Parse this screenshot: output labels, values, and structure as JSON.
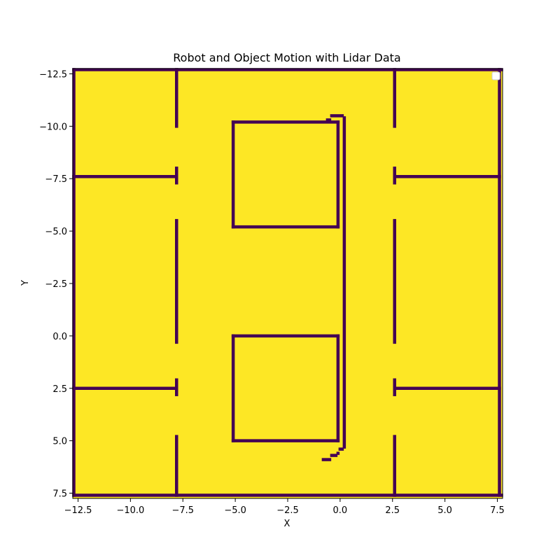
{
  "chart_data": {
    "type": "heatmap",
    "title": "Robot and Object Motion with Lidar Data",
    "xlabel": "X",
    "ylabel": "Y",
    "xlim": [
      -12.75,
      7.75
    ],
    "ylim": [
      7.75,
      -12.75
    ],
    "y_inverted": true,
    "x_ticks": [
      -12.5,
      -10.0,
      -7.5,
      -5.0,
      -2.5,
      0.0,
      2.5,
      5.0,
      7.5
    ],
    "x_tick_labels": [
      "−12.5",
      "−10.0",
      "−7.5",
      "−5.0",
      "−2.5",
      "0.0",
      "2.5",
      "5.0",
      "7.5"
    ],
    "y_ticks": [
      -12.5,
      -10.0,
      -7.5,
      -5.0,
      -2.5,
      0.0,
      2.5,
      5.0,
      7.5
    ],
    "y_tick_labels": [
      "−12.5",
      "−10.0",
      "−7.5",
      "−5.0",
      "−2.5",
      "0.0",
      "2.5",
      "5.0",
      "7.5"
    ],
    "grid": false,
    "legend": "top-right",
    "colors": {
      "free": "#fde725",
      "occupied": "#440154"
    },
    "occupied_segments": [
      {
        "name": "border-top",
        "x": [
          -12.7,
          7.7
        ],
        "y": [
          -12.7,
          -12.7
        ]
      },
      {
        "name": "border-bottom",
        "x": [
          -12.7,
          7.7
        ],
        "y": [
          7.6,
          7.6
        ]
      },
      {
        "name": "border-left",
        "x": [
          -12.7,
          -12.7
        ],
        "y": [
          -12.7,
          7.6
        ]
      },
      {
        "name": "border-right",
        "x": [
          7.6,
          7.6
        ],
        "y": [
          -12.7,
          7.6
        ]
      },
      {
        "name": "left-wall-seg-1",
        "x": [
          -7.8,
          -7.8
        ],
        "y": [
          -12.7,
          -10.0
        ]
      },
      {
        "name": "left-wall-seg-2",
        "x": [
          -7.8,
          -7.8
        ],
        "y": [
          -8.0,
          -7.3
        ]
      },
      {
        "name": "left-wall-seg-3",
        "x": [
          -7.8,
          -7.8
        ],
        "y": [
          -5.5,
          0.3
        ]
      },
      {
        "name": "left-wall-seg-4",
        "x": [
          -7.8,
          -7.8
        ],
        "y": [
          2.1,
          2.8
        ]
      },
      {
        "name": "left-wall-seg-5",
        "x": [
          -7.8,
          -7.8
        ],
        "y": [
          4.8,
          7.6
        ]
      },
      {
        "name": "right-wall-seg-1",
        "x": [
          2.6,
          2.6
        ],
        "y": [
          -12.7,
          -10.0
        ]
      },
      {
        "name": "right-wall-seg-2",
        "x": [
          2.6,
          2.6
        ],
        "y": [
          -8.0,
          -7.3
        ]
      },
      {
        "name": "right-wall-seg-3",
        "x": [
          2.6,
          2.6
        ],
        "y": [
          -5.5,
          0.3
        ]
      },
      {
        "name": "right-wall-seg-4",
        "x": [
          2.6,
          2.6
        ],
        "y": [
          2.1,
          2.8
        ]
      },
      {
        "name": "right-wall-seg-5",
        "x": [
          2.6,
          2.6
        ],
        "y": [
          4.8,
          7.6
        ]
      },
      {
        "name": "left-room-upper-divider",
        "x": [
          -12.7,
          -7.8
        ],
        "y": [
          -7.6,
          -7.6
        ]
      },
      {
        "name": "left-room-lower-divider",
        "x": [
          -12.7,
          -7.8
        ],
        "y": [
          2.5,
          2.5
        ]
      },
      {
        "name": "right-room-upper-divider",
        "x": [
          2.6,
          7.6
        ],
        "y": [
          -7.6,
          -7.6
        ]
      },
      {
        "name": "right-room-lower-divider",
        "x": [
          2.6,
          7.6
        ],
        "y": [
          2.5,
          2.5
        ]
      },
      {
        "name": "upper-box-top",
        "x": [
          -5.1,
          -0.1
        ],
        "y": [
          -10.2,
          -10.2
        ]
      },
      {
        "name": "upper-box-bottom",
        "x": [
          -5.1,
          -0.1
        ],
        "y": [
          -5.2,
          -5.2
        ]
      },
      {
        "name": "upper-box-left",
        "x": [
          -5.1,
          -5.1
        ],
        "y": [
          -10.2,
          -5.2
        ]
      },
      {
        "name": "upper-box-right",
        "x": [
          -0.1,
          -0.1
        ],
        "y": [
          -10.2,
          -5.2
        ]
      },
      {
        "name": "lower-box-top",
        "x": [
          -5.1,
          -0.1
        ],
        "y": [
          0.0,
          0.0
        ]
      },
      {
        "name": "lower-box-bottom",
        "x": [
          -5.1,
          -0.1
        ],
        "y": [
          5.0,
          5.0
        ]
      },
      {
        "name": "lower-box-left",
        "x": [
          -5.1,
          -5.1
        ],
        "y": [
          0.0,
          5.0
        ]
      },
      {
        "name": "lower-box-right",
        "x": [
          -0.1,
          -0.1
        ],
        "y": [
          0.0,
          5.0
        ]
      },
      {
        "name": "robot-path-vertical",
        "x": [
          0.2,
          0.2
        ],
        "y": [
          -10.4,
          5.3
        ]
      },
      {
        "name": "robot-path-top-cap",
        "x": [
          -0.4,
          0.1
        ],
        "y": [
          -10.5,
          -10.5
        ]
      },
      {
        "name": "robot-path-top-hook",
        "x": [
          -0.6,
          -0.5
        ],
        "y": [
          -10.3,
          -10.3
        ]
      },
      {
        "name": "robot-path-bottom-1",
        "x": [
          0.0,
          0.1
        ],
        "y": [
          5.4,
          5.4
        ]
      },
      {
        "name": "robot-path-bottom-2",
        "x": [
          -0.1,
          -0.1
        ],
        "y": [
          5.6,
          5.6
        ]
      },
      {
        "name": "robot-path-bottom-3",
        "x": [
          -0.4,
          -0.2
        ],
        "y": [
          5.7,
          5.7
        ]
      },
      {
        "name": "robot-path-bottom-4",
        "x": [
          -0.8,
          -0.5
        ],
        "y": [
          5.9,
          5.9
        ]
      }
    ]
  }
}
